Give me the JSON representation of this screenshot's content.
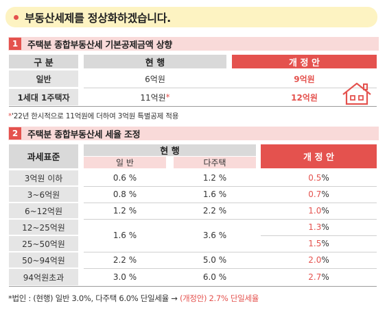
{
  "banner": {
    "title": "부동산세제를 정상화하겠습니다."
  },
  "section1": {
    "number": "1",
    "title": "주택분 종합부동산세 기본공제금액 상향",
    "headers": {
      "category": "구 분",
      "current": "현 행",
      "revised": "개 정 안"
    },
    "rows": [
      {
        "category": "일반",
        "current": "6억원",
        "current_mark": "",
        "revised": "9억원"
      },
      {
        "category": "1세대 1주택자",
        "current": "11억원",
        "current_mark": "*",
        "revised": "12억원"
      }
    ],
    "note_mark": "*",
    "note": "'22년 한시적으로 11억원에 더하여 3억원 특별공제 적용"
  },
  "section2": {
    "number": "2",
    "title": "주택분 종합부동산세 세율 조정",
    "headers": {
      "bracket": "과세표준",
      "current": "현 행",
      "general": "일 반",
      "multi": "다주택",
      "revised": "개 정 안"
    },
    "rows": [
      {
        "bracket": "3억원 이하",
        "general": "0.6 %",
        "multi": "1.2 %",
        "revised_num": "0.5",
        "revised_unit": " %"
      },
      {
        "bracket": "3~6억원",
        "general": "0.8 %",
        "multi": "1.6 %",
        "revised_num": "0.7",
        "revised_unit": " %"
      },
      {
        "bracket": "6~12억원",
        "general": "1.2 %",
        "multi": "2.2 %",
        "revised_num": "1.0",
        "revised_unit": " %"
      },
      {
        "bracket": "12~25억원",
        "general": "1.6 %",
        "multi": "3.6 %",
        "revised_num": "1.3",
        "revised_unit": " %"
      },
      {
        "bracket": "25~50억원",
        "general": "",
        "multi": "",
        "revised_num": "1.5",
        "revised_unit": " %"
      },
      {
        "bracket": "50~94억원",
        "general": "2.2 %",
        "multi": "5.0 %",
        "revised_num": "2.0",
        "revised_unit": " %"
      },
      {
        "bracket": "94억원초과",
        "general": "3.0 %",
        "multi": "6.0 %",
        "revised_num": "2.7",
        "revised_unit": " %"
      }
    ],
    "footnote_prefix": "*법인 : (현행) 일반 3.0%, 다주택 6.0% 단일세율 → ",
    "footnote_highlight": "(개정안) 2.7% 단일세율"
  },
  "colors": {
    "accent": "#e4524e",
    "banner_bg": "#fdf3c2",
    "pink": "#f9dad9",
    "gray": "#d9d9d9"
  },
  "icons": {
    "house": "house-icon"
  }
}
